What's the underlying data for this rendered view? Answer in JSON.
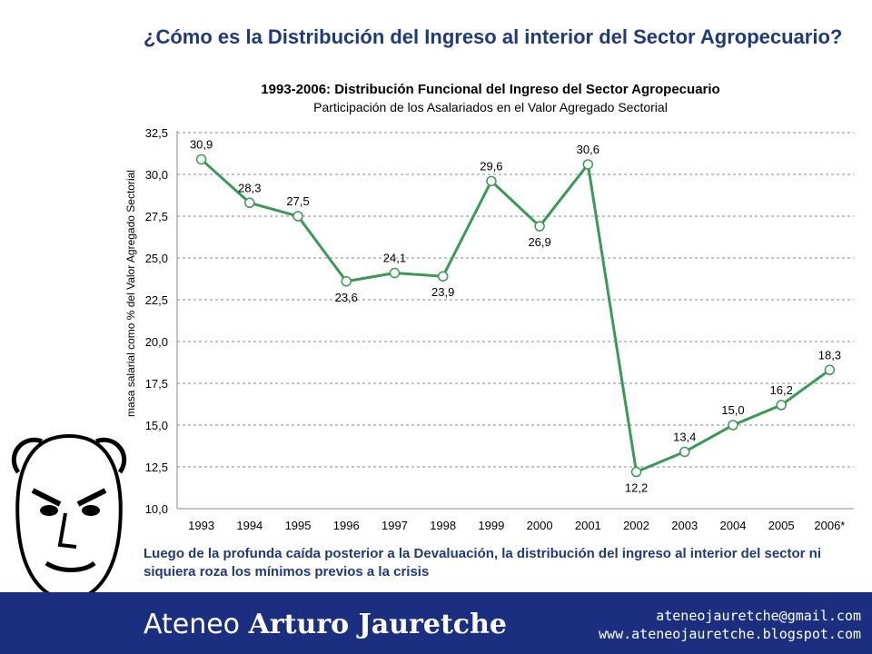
{
  "slide": {
    "title": "¿Cómo es la Distribución del Ingreso al interior del Sector Agropecuario?",
    "footnote": "Luego de la profunda caída posterior a la Devaluación, la distribución del ingreso al interior del sector ni siquiera roza los mínimos previos a la crisis"
  },
  "footer": {
    "brand_light": "Ateneo",
    "brand_bold": "Arturo Jauretche",
    "email": "ateneojauretche@gmail.com",
    "website": "www.ateneojauretche.blogspot.com"
  },
  "colors": {
    "line": "#3a9a55",
    "title": "#1f3a7a",
    "footer": "#1b2e80"
  },
  "chart_data": {
    "type": "line",
    "title": "1993-2006: Distribución Funcional del Ingreso del Sector Agropecuario",
    "subtitle": "Participación de los Asalariados en el Valor Agregado Sectorial",
    "xlabel": "",
    "ylabel": "masa salarial como % del Valor Agregado Sectorial",
    "categories": [
      "1993",
      "1994",
      "1995",
      "1996",
      "1997",
      "1998",
      "1999",
      "2000",
      "2001",
      "2002",
      "2003",
      "2004",
      "2005",
      "2006*"
    ],
    "values": [
      30.9,
      28.3,
      27.5,
      23.6,
      24.1,
      23.9,
      29.6,
      26.9,
      30.6,
      12.2,
      13.4,
      15.0,
      16.2,
      18.3
    ],
    "data_labels": [
      "30,9",
      "28,3",
      "27,5",
      "23,6",
      "24,1",
      "23,9",
      "29,6",
      "26,9",
      "30,6",
      "12,2",
      "13,4",
      "15,0",
      "16,2",
      "18,3"
    ],
    "ylim": [
      10.0,
      32.5
    ],
    "yticks": [
      "10,0",
      "12,5",
      "15,0",
      "17,5",
      "20,0",
      "22,5",
      "25,0",
      "27,5",
      "30,0",
      "32,5"
    ],
    "grid": true,
    "legend": "none"
  }
}
